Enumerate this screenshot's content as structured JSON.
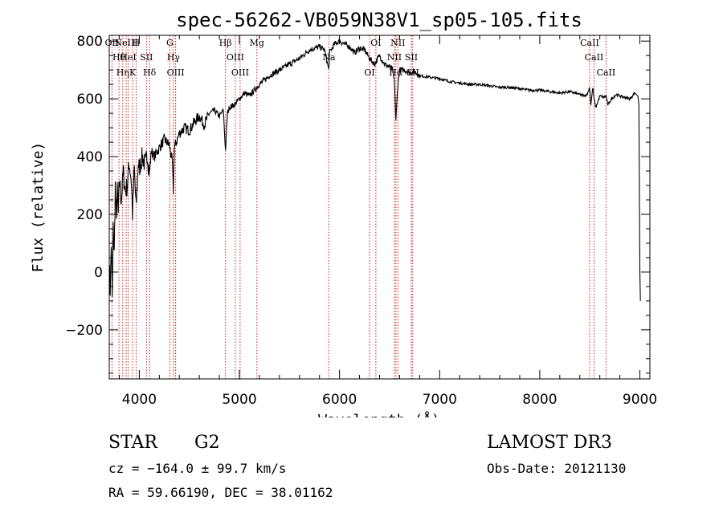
{
  "chart_data": {
    "type": "line",
    "title": "spec-56262-VB059N38V1_sp05-105.fits",
    "xlabel": "Wavelength (Å)",
    "ylabel": "Flux (relative)",
    "xlim": [
      3700,
      9100
    ],
    "ylim": [
      -370,
      820
    ],
    "xticks": [
      4000,
      5000,
      6000,
      7000,
      8000,
      9000
    ],
    "yticks": [
      -200,
      0,
      200,
      400,
      600,
      800
    ],
    "x_minor_step": 200,
    "y_minor_step": 50,
    "series": [
      {
        "name": "flux",
        "x": [
          3700,
          3710,
          3720,
          3730,
          3740,
          3750,
          3760,
          3770,
          3780,
          3790,
          3800,
          3820,
          3840,
          3860,
          3880,
          3900,
          3920,
          3933,
          3950,
          3968,
          3990,
          4000,
          4030,
          4060,
          4080,
          4102,
          4120,
          4150,
          4200,
          4250,
          4300,
          4330,
          4340,
          4350,
          4380,
          4400,
          4450,
          4500,
          4550,
          4600,
          4650,
          4700,
          4750,
          4800,
          4840,
          4861,
          4880,
          4900,
          4950,
          5000,
          5050,
          5100,
          5150,
          5200,
          5300,
          5400,
          5500,
          5600,
          5700,
          5800,
          5850,
          5893,
          5900,
          5950,
          6000,
          6050,
          6100,
          6150,
          6200,
          6250,
          6300,
          6350,
          6400,
          6450,
          6500,
          6530,
          6550,
          6563,
          6580,
          6600,
          6650,
          6700,
          6750,
          6800,
          6900,
          7000,
          7100,
          7200,
          7300,
          7400,
          7500,
          7600,
          7700,
          7800,
          7900,
          8000,
          8100,
          8200,
          8300,
          8400,
          8450,
          8480,
          8498,
          8510,
          8530,
          8542,
          8560,
          8600,
          8640,
          8662,
          8680,
          8720,
          8760,
          8800,
          8850,
          8900,
          8950,
          8980,
          8990,
          9000,
          9005
        ],
        "y": [
          20,
          -60,
          100,
          -90,
          150,
          60,
          300,
          180,
          280,
          200,
          320,
          250,
          350,
          280,
          300,
          380,
          320,
          200,
          360,
          220,
          380,
          360,
          400,
          370,
          410,
          340,
          420,
          400,
          430,
          460,
          440,
          380,
          280,
          430,
          460,
          480,
          500,
          490,
          520,
          540,
          510,
          550,
          560,
          540,
          560,
          420,
          550,
          570,
          580,
          600,
          620,
          610,
          630,
          650,
          680,
          700,
          720,
          740,
          770,
          780,
          770,
          700,
          760,
          790,
          800,
          790,
          780,
          760,
          775,
          770,
          740,
          720,
          750,
          720,
          710,
          700,
          650,
          520,
          640,
          700,
          700,
          690,
          695,
          680,
          675,
          670,
          660,
          655,
          650,
          650,
          645,
          640,
          640,
          635,
          630,
          630,
          625,
          620,
          625,
          615,
          610,
          620,
          640,
          580,
          640,
          600,
          570,
          610,
          605,
          610,
          580,
          600,
          615,
          610,
          605,
          600,
          620,
          610,
          580,
          0,
          -100
        ]
      }
    ],
    "line_markers": [
      {
        "wl": 3727,
        "label": "OII"
      },
      {
        "wl": 3797,
        "label": "Hθ"
      },
      {
        "wl": 3835,
        "label": "Hη"
      },
      {
        "wl": 3869,
        "label": "NeIII"
      },
      {
        "wl": 3889,
        "label": "HeI"
      },
      {
        "wl": 3934,
        "label": "K"
      },
      {
        "wl": 3968,
        "label": "H"
      },
      {
        "wl": 4072,
        "label": "SII"
      },
      {
        "wl": 4102,
        "label": "Hδ"
      },
      {
        "wl": 4305,
        "label": "G"
      },
      {
        "wl": 4341,
        "label": "Hγ"
      },
      {
        "wl": 4363,
        "label": "OIII"
      },
      {
        "wl": 4861,
        "label": "Hβ"
      },
      {
        "wl": 4959,
        "label": "OIII"
      },
      {
        "wl": 5007,
        "label": "OIII"
      },
      {
        "wl": 5175,
        "label": "Mg"
      },
      {
        "wl": 5893,
        "label": "Na"
      },
      {
        "wl": 6300,
        "label": "OI"
      },
      {
        "wl": 6363,
        "label": "OI"
      },
      {
        "wl": 6548,
        "label": "NII"
      },
      {
        "wl": 6563,
        "label": "Hα"
      },
      {
        "wl": 6583,
        "label": "NII"
      },
      {
        "wl": 6717,
        "label": "SII"
      },
      {
        "wl": 6731,
        "label": "SII"
      },
      {
        "wl": 8498,
        "label": "CaII"
      },
      {
        "wl": 8542,
        "label": "CaII"
      },
      {
        "wl": 8662,
        "label": "CaII"
      }
    ],
    "marker_color": "#cc0000",
    "line_color": "#000000"
  },
  "info": {
    "object_class": "STAR",
    "subclass": "G2",
    "survey": "LAMOST DR3",
    "cz": "cz = −164.0 ± 99.7 km/s",
    "obs_date": "Obs-Date: 20121130",
    "coords": "RA =  59.66190, DEC =  38.01162"
  }
}
